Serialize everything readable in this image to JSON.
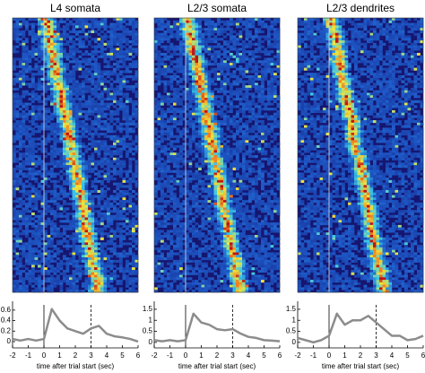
{
  "chart_data": [
    {
      "type": "line",
      "title": "L4 somata",
      "xlabel": "time after trial start (sec)",
      "x": [
        -2,
        -1.5,
        -1,
        -0.5,
        0,
        0.5,
        1,
        1.5,
        2,
        2.5,
        3,
        3.5,
        4,
        4.5,
        5,
        5.5,
        6
      ],
      "series": [
        {
          "color": "#8c8c8c",
          "values": [
            0.05,
            0.02,
            0.05,
            0.02,
            0.05,
            0.62,
            0.4,
            0.25,
            0.2,
            0.15,
            0.25,
            0.3,
            0.15,
            0.1,
            0.08,
            0.05,
            0.0
          ]
        }
      ],
      "xlim": [
        -2,
        6
      ],
      "xticks": [
        -2,
        -1,
        0,
        1,
        2,
        3,
        4,
        5,
        6
      ],
      "ylim": [
        -0.12,
        0.7
      ],
      "yticks": [
        0,
        0.2,
        0.4,
        0.6
      ],
      "markers": [
        {
          "x": 0,
          "style": "solid"
        },
        {
          "x": 3,
          "style": "dashed"
        }
      ]
    },
    {
      "type": "line",
      "title": "L2/3 somata",
      "xlabel": "time after trial start (sec)",
      "x": [
        -2,
        -1.5,
        -1,
        -0.5,
        0,
        0.5,
        1,
        1.5,
        2,
        2.5,
        3,
        3.5,
        4,
        4.5,
        5,
        5.5,
        6
      ],
      "series": [
        {
          "color": "#8c8c8c",
          "values": [
            0.1,
            0.05,
            0.1,
            0.05,
            0.1,
            1.3,
            0.9,
            0.8,
            0.6,
            0.55,
            0.6,
            0.4,
            0.25,
            0.2,
            0.1,
            0.08,
            0.05
          ]
        }
      ],
      "xlim": [
        -2,
        6
      ],
      "xticks": [
        -2,
        -1,
        0,
        1,
        2,
        3,
        4,
        5,
        6
      ],
      "ylim": [
        -0.25,
        1.7
      ],
      "yticks": [
        0,
        0.5,
        1,
        1.5
      ],
      "markers": [
        {
          "x": 0,
          "style": "solid"
        },
        {
          "x": 3,
          "style": "dashed"
        }
      ]
    },
    {
      "type": "line",
      "title": "L2/3 dendrites",
      "xlabel": "time after trial start (sec)",
      "x": [
        -2,
        -1.5,
        -1,
        -0.5,
        0,
        0.5,
        1,
        1.5,
        2,
        2.5,
        3,
        3.5,
        4,
        4.5,
        5,
        5.5,
        6
      ],
      "series": [
        {
          "color": "#8c8c8c",
          "values": [
            0.2,
            0.1,
            0.0,
            0.1,
            0.3,
            1.3,
            0.8,
            1.0,
            1.0,
            1.2,
            0.9,
            0.6,
            0.3,
            0.3,
            0.1,
            0.15,
            0.3
          ]
        }
      ],
      "xlim": [
        -2,
        6
      ],
      "xticks": [
        -2,
        -1,
        0,
        1,
        2,
        3,
        4,
        5,
        6
      ],
      "ylim": [
        -0.25,
        1.7
      ],
      "yticks": [
        0,
        0.5,
        1,
        1.5
      ],
      "markers": [
        {
          "x": 0,
          "style": "solid"
        },
        {
          "x": 3,
          "style": "dashed"
        }
      ]
    }
  ]
}
